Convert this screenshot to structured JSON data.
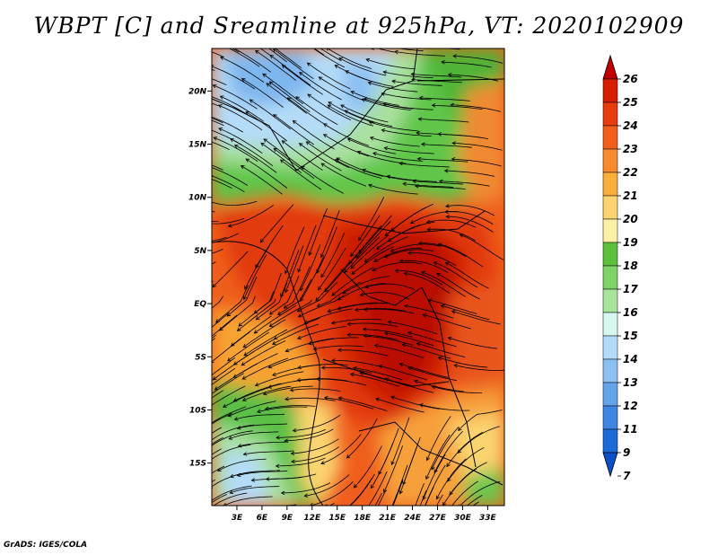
{
  "title": "WBPT [C] and Sreamline at 925hPa, VT: 2020102909",
  "credit": "GrADS: IGES/COLA",
  "map": {
    "lat_labels": [
      "20N",
      "15N",
      "10N",
      "5N",
      "EQ",
      "5S",
      "10S",
      "15S"
    ],
    "lon_labels": [
      "3E",
      "6E",
      "9E",
      "12E",
      "15E",
      "18E",
      "21E",
      "24E",
      "27E",
      "30E",
      "33E"
    ],
    "lat_range": [
      -19,
      24
    ],
    "lon_range": [
      0,
      35
    ]
  },
  "colorbar": {
    "labels": [
      "26",
      "25",
      "24",
      "23",
      "22",
      "21",
      "20",
      "19",
      "18",
      "17",
      "16",
      "15",
      "14",
      "13",
      "12",
      "11",
      "9",
      "7"
    ],
    "colors": [
      "#c00000",
      "#d81e00",
      "#e83c0c",
      "#f25f1a",
      "#f88a2c",
      "#faae3c",
      "#fbd470",
      "#fdf0a6",
      "#5cc03c",
      "#7ed468",
      "#a8e49a",
      "#d8f6f0",
      "#b4dcfa",
      "#8cc0f2",
      "#64a4ea",
      "#3e86e2",
      "#1c6ad8",
      "#0a50c8"
    ]
  }
}
